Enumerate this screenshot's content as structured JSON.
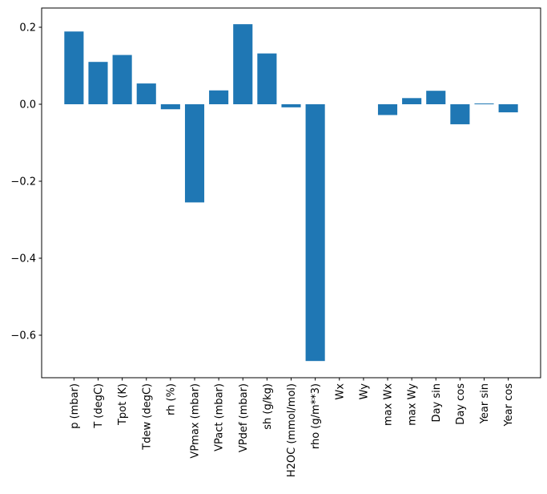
{
  "chart_data": {
    "type": "bar",
    "title": "",
    "xlabel": "",
    "ylabel": "",
    "grid": false,
    "legend": null,
    "bar_color": "#1f77b4",
    "spine_color": "#000000",
    "categories": [
      "p (mbar)",
      "T (degC)",
      "Tpot (K)",
      "Tdew (degC)",
      "rh (%)",
      "VPmax (mbar)",
      "VPact (mbar)",
      "VPdef (mbar)",
      "sh (g/kg)",
      "H2OC (mmol/mol)",
      "rho (g/m**3)",
      "Wx",
      "Wy",
      "max Wx",
      "max Wy",
      "Day sin",
      "Day cos",
      "Year sin",
      "Year cos"
    ],
    "values": [
      0.189,
      0.11,
      0.128,
      0.054,
      -0.013,
      -0.255,
      0.036,
      0.208,
      0.132,
      -0.008,
      -0.667,
      0.0,
      0.0,
      -0.028,
      0.016,
      0.035,
      -0.052,
      0.002,
      -0.021
    ],
    "yticks": [
      0.2,
      0.0,
      -0.2,
      -0.4,
      -0.6
    ],
    "ytick_labels": [
      "0.2",
      "0.0",
      "−0.2",
      "−0.4",
      "−0.6"
    ],
    "ylim": [
      -0.7104,
      0.25
    ],
    "xlim": [
      -1.34,
      19.34
    ],
    "bar_width": 0.8
  }
}
